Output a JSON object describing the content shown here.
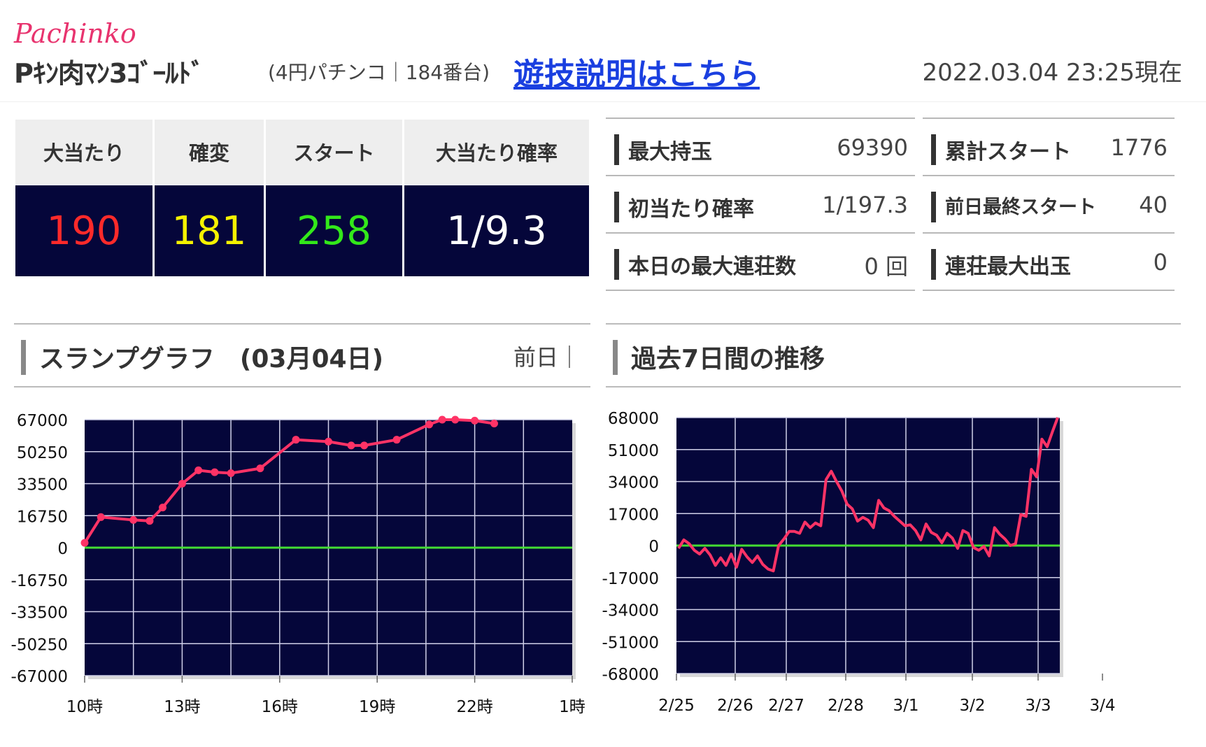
{
  "header": {
    "brand": "Pachinko",
    "machine_name": "Pｷﾝ肉ﾏﾝ3ｺﾞｰﾙﾄﾞ",
    "sub_info": "(4円パチンコ｜184番台)",
    "howto_link": "遊技説明はこちら",
    "timestamp": "2022.03.04 23:25現在"
  },
  "counts": [
    {
      "label": "大当たり",
      "value": "190",
      "color": "#ff2a2a"
    },
    {
      "label": "確変",
      "value": "181",
      "color": "#f5f200"
    },
    {
      "label": "スタート",
      "value": "258",
      "color": "#33e81a"
    },
    {
      "label": "大当たり確率",
      "value": "1/9.3",
      "color": "#ffffff"
    }
  ],
  "stats": [
    {
      "label": "最大持玉",
      "value": "69390"
    },
    {
      "label": "累計スタート",
      "value": "1776"
    },
    {
      "label": "初当たり確率",
      "value": "1/197.3"
    },
    {
      "label": "前日最終スタート",
      "value": "40"
    },
    {
      "label": "本日の最大連荘数",
      "value": "0 回"
    },
    {
      "label": "連荘最大出玉",
      "value": "0"
    }
  ],
  "slump": {
    "title": "スランプグラフ　(03月04日)",
    "prev_link": "前日｜"
  },
  "week": {
    "title": "過去7日間の推移"
  },
  "chart_data": [
    {
      "type": "line",
      "ylim": [
        -67000,
        67000
      ],
      "y_ticks": [
        "67000",
        "50250",
        "33500",
        "16750",
        "0",
        "-16750",
        "-33500",
        "-50250",
        "-67000"
      ],
      "x_ticks": [
        "10時",
        "13時",
        "16時",
        "19時",
        "22時",
        "1時"
      ],
      "x_range": [
        10,
        25
      ],
      "line_color": "#ff3366",
      "zero_color": "#44dd33",
      "x": [
        10.0,
        10.5,
        11.5,
        12.0,
        12.4,
        13.0,
        13.5,
        14.0,
        14.5,
        15.4,
        16.5,
        17.5,
        18.2,
        18.6,
        19.6,
        20.6,
        21.0,
        21.4,
        22.0,
        22.6
      ],
      "y": [
        2500,
        16000,
        14500,
        14000,
        21000,
        33500,
        40500,
        39500,
        39000,
        41500,
        56500,
        55500,
        53500,
        53500,
        56500,
        64500,
        67000,
        67000,
        66500,
        65000
      ]
    },
    {
      "type": "line",
      "ylim": [
        -68000,
        68000
      ],
      "y_ticks": [
        "68000",
        "51000",
        "34000",
        "17000",
        "0",
        "-17000",
        "-34000",
        "-51000",
        "-68000"
      ],
      "x_ticks": [
        "2/25",
        "2/26",
        "2/27",
        "2/28",
        "3/1",
        "3/2",
        "3/3",
        "3/4"
      ],
      "line_color": "#ff3366",
      "zero_color": "#44dd33",
      "y": [
        -1500,
        3000,
        1000,
        -2500,
        -4500,
        -1500,
        -5000,
        -10500,
        -6500,
        -10500,
        -4500,
        -11500,
        -2000,
        -6000,
        -9000,
        -5500,
        -10000,
        -12500,
        -13500,
        0,
        3500,
        7500,
        7500,
        6500,
        12500,
        9500,
        12000,
        10500,
        35000,
        39500,
        34000,
        29000,
        22000,
        19500,
        13000,
        15000,
        13500,
        9500,
        24000,
        20000,
        18500,
        15500,
        13000,
        10500,
        11000,
        8000,
        3000,
        11500,
        7000,
        5500,
        1500,
        6500,
        4000,
        -1500,
        8000,
        6500,
        -1000,
        -2500,
        -500,
        -5500,
        9500,
        6000,
        3500,
        0,
        1000,
        16500,
        15500,
        40500,
        36500,
        56500,
        52500,
        60500,
        68000
      ]
    }
  ]
}
